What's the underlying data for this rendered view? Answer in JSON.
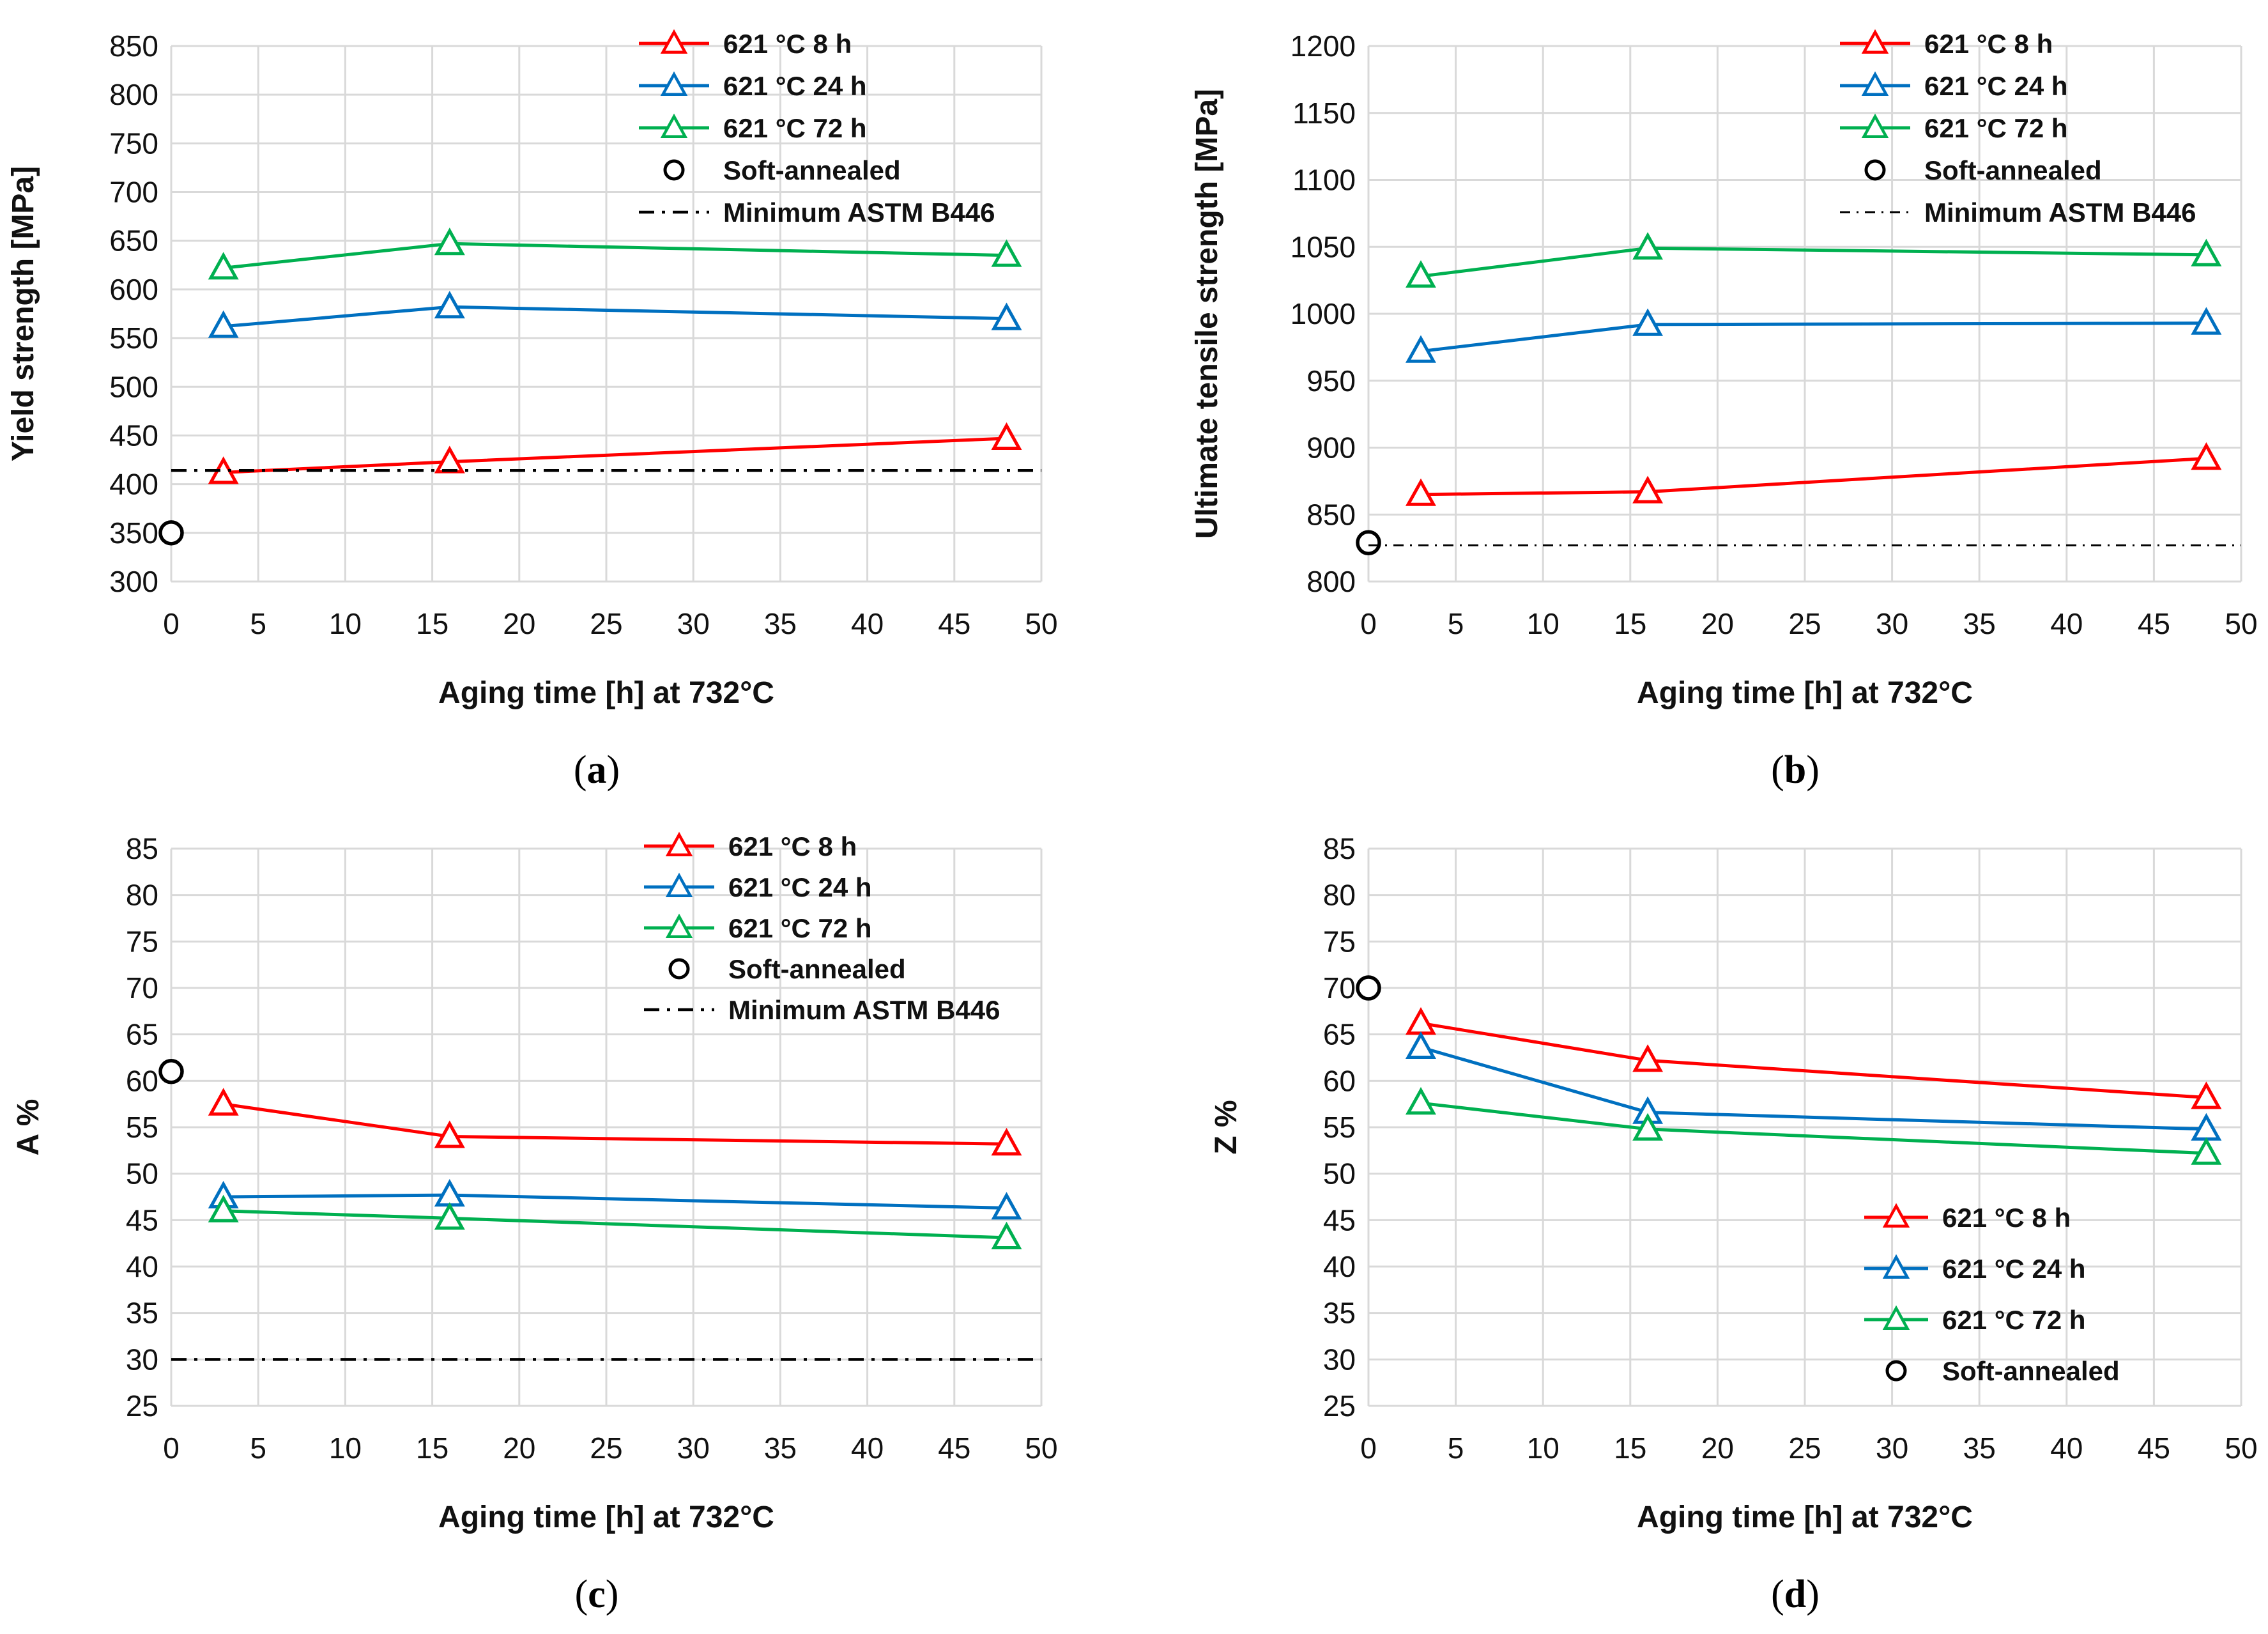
{
  "figure": {
    "panel_count": 4
  },
  "colors": {
    "red": "#ff0000",
    "blue": "#0070c0",
    "green": "#00b050",
    "black": "#000000",
    "grid": "#d9d9d9"
  },
  "chart_data": [
    {
      "panel": "a",
      "caption": {
        "open": "(",
        "letter": "a",
        "close": ")"
      },
      "type": "line",
      "xlabel": "Aging time [h] at 732°C",
      "ylabel": "Yield strength [MPa]",
      "xlim": [
        0,
        50
      ],
      "ylim": [
        300,
        850
      ],
      "xticks": [
        "0",
        "5",
        "10",
        "15",
        "20",
        "25",
        "30",
        "35",
        "40",
        "45",
        "50"
      ],
      "yticks": [
        "300",
        "350",
        "400",
        "450",
        "500",
        "550",
        "600",
        "650",
        "700",
        "750",
        "800",
        "850"
      ],
      "grid": true,
      "legend_position": "top-right",
      "series": [
        {
          "name": "621 °C 8 h",
          "color": "#ff0000",
          "marker": "triangle",
          "x": [
            3,
            16,
            48
          ],
          "y": [
            412,
            423,
            447
          ]
        },
        {
          "name": "621 °C 24 h",
          "color": "#0070c0",
          "marker": "triangle",
          "x": [
            3,
            16,
            48
          ],
          "y": [
            562,
            582,
            570
          ]
        },
        {
          "name": "621 °C 72 h",
          "color": "#00b050",
          "marker": "triangle",
          "x": [
            3,
            16,
            48
          ],
          "y": [
            622,
            647,
            635
          ]
        },
        {
          "name": "Soft-annealed",
          "color": "#000000",
          "marker": "circle",
          "x": [
            0
          ],
          "y": [
            350
          ]
        },
        {
          "name": "Minimum ASTM B446",
          "color": "#000000",
          "style": "dashdot",
          "y_const": 414
        }
      ]
    },
    {
      "panel": "b",
      "caption": {
        "open": "(",
        "letter": "b",
        "close": ")"
      },
      "type": "line",
      "xlabel": "Aging time [h] at 732°C",
      "ylabel": "Ultimate tensile strength [MPa]",
      "xlim": [
        0,
        50
      ],
      "ylim": [
        800,
        1200
      ],
      "xticks": [
        "0",
        "5",
        "10",
        "15",
        "20",
        "25",
        "30",
        "35",
        "40",
        "45",
        "50"
      ],
      "yticks": [
        "800",
        "850",
        "900",
        "950",
        "1000",
        "1050",
        "1100",
        "1150",
        "1200"
      ],
      "grid": true,
      "legend_position": "top-right",
      "series": [
        {
          "name": "621 °C 8 h",
          "color": "#ff0000",
          "marker": "triangle",
          "x": [
            3,
            16,
            48
          ],
          "y": [
            865,
            867,
            892
          ]
        },
        {
          "name": "621 °C 24 h",
          "color": "#0070c0",
          "marker": "triangle",
          "x": [
            3,
            16,
            48
          ],
          "y": [
            972,
            992,
            993
          ]
        },
        {
          "name": "621 °C 72 h",
          "color": "#00b050",
          "marker": "triangle",
          "x": [
            3,
            16,
            48
          ],
          "y": [
            1028,
            1049,
            1044
          ]
        },
        {
          "name": "Soft-annealed",
          "color": "#000000",
          "marker": "circle",
          "x": [
            0
          ],
          "y": [
            829
          ]
        },
        {
          "name": "Minimum ASTM B446",
          "color": "#000000",
          "style": "dashdot-fine",
          "y_const": 827
        }
      ]
    },
    {
      "panel": "c",
      "caption": {
        "open": "(",
        "letter": "c",
        "close": ")"
      },
      "type": "line",
      "xlabel": "Aging time [h] at 732°C",
      "ylabel": "A %",
      "xlim": [
        0,
        50
      ],
      "ylim": [
        25,
        85
      ],
      "xticks": [
        "0",
        "5",
        "10",
        "15",
        "20",
        "25",
        "30",
        "35",
        "40",
        "45",
        "50"
      ],
      "yticks": [
        "25",
        "30",
        "35",
        "40",
        "45",
        "50",
        "55",
        "60",
        "65",
        "70",
        "75",
        "80",
        "85"
      ],
      "grid": true,
      "legend_position": "top-right",
      "series": [
        {
          "name": "621 °C 8 h",
          "color": "#ff0000",
          "marker": "triangle",
          "x": [
            3,
            16,
            48
          ],
          "y": [
            57.5,
            54.0,
            53.2
          ]
        },
        {
          "name": "621 °C 24 h",
          "color": "#0070c0",
          "marker": "triangle",
          "x": [
            3,
            16,
            48
          ],
          "y": [
            47.5,
            47.7,
            46.3
          ]
        },
        {
          "name": "621 °C 72 h",
          "color": "#00b050",
          "marker": "triangle",
          "x": [
            3,
            16,
            48
          ],
          "y": [
            46.0,
            45.2,
            43.1
          ]
        },
        {
          "name": "Soft-annealed",
          "color": "#000000",
          "marker": "circle",
          "x": [
            0
          ],
          "y": [
            61
          ]
        },
        {
          "name": "Minimum ASTM B446",
          "color": "#000000",
          "style": "dashdot",
          "y_const": 30
        }
      ]
    },
    {
      "panel": "d",
      "caption": {
        "open": "(",
        "letter": "d",
        "close": ")"
      },
      "type": "line",
      "xlabel": "Aging time [h] at 732°C",
      "ylabel": "Z %",
      "xlim": [
        0,
        50
      ],
      "ylim": [
        25,
        85
      ],
      "xticks": [
        "0",
        "5",
        "10",
        "15",
        "20",
        "25",
        "30",
        "35",
        "40",
        "45",
        "50"
      ],
      "yticks": [
        "25",
        "30",
        "35",
        "40",
        "45",
        "50",
        "55",
        "60",
        "65",
        "70",
        "75",
        "80",
        "85"
      ],
      "grid": true,
      "legend_position": "bottom-right",
      "series": [
        {
          "name": "621 °C 8 h",
          "color": "#ff0000",
          "marker": "triangle",
          "x": [
            3,
            16,
            48
          ],
          "y": [
            66.2,
            62.2,
            58.2
          ]
        },
        {
          "name": "621 °C 24 h",
          "color": "#0070c0",
          "marker": "triangle",
          "x": [
            3,
            16,
            48
          ],
          "y": [
            63.6,
            56.6,
            54.8
          ]
        },
        {
          "name": "621 °C 72 h",
          "color": "#00b050",
          "marker": "triangle",
          "x": [
            3,
            16,
            48
          ],
          "y": [
            57.6,
            54.8,
            52.2
          ]
        },
        {
          "name": "Soft-annealed",
          "color": "#000000",
          "marker": "circle",
          "x": [
            0
          ],
          "y": [
            70
          ]
        }
      ]
    }
  ]
}
